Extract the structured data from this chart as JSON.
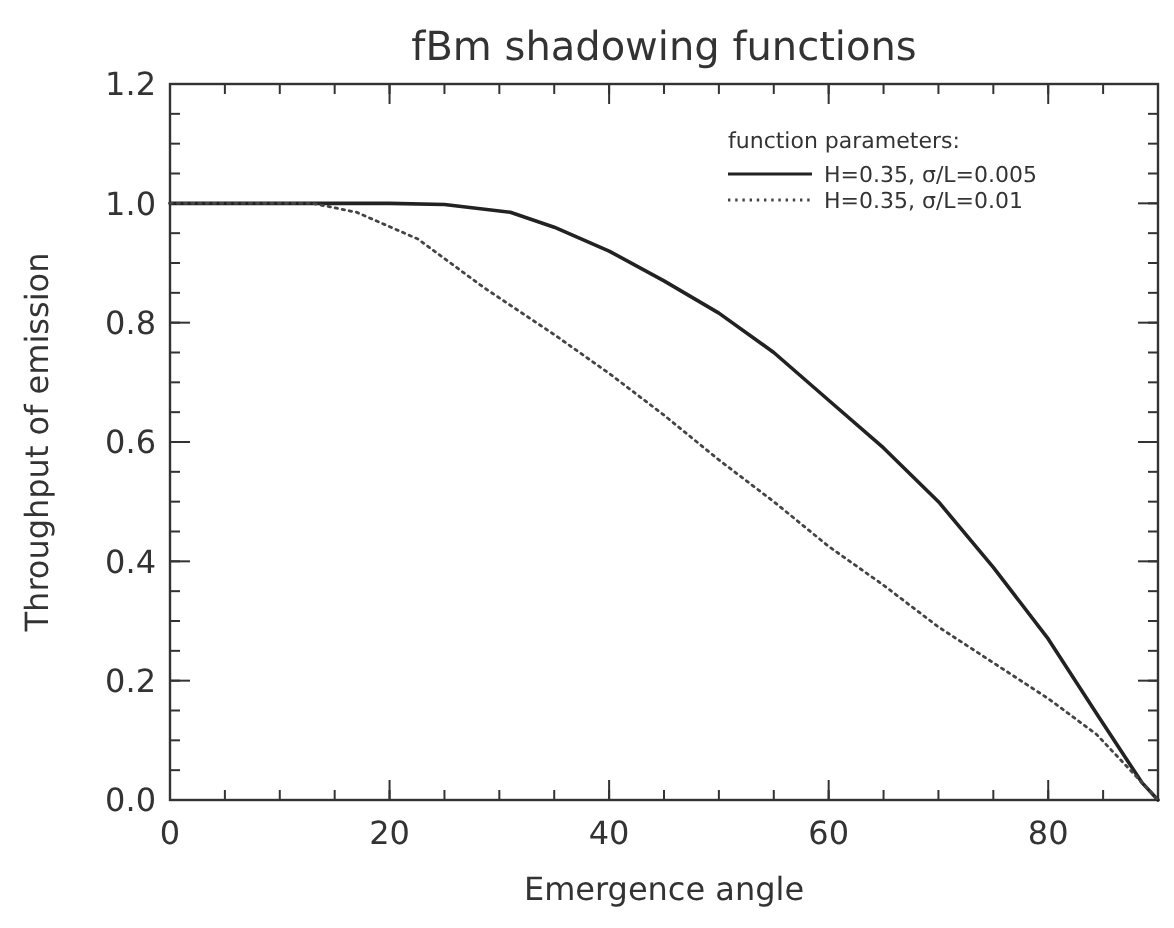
{
  "chart_data": {
    "type": "line",
    "title": "fBm shadowing functions",
    "xlabel": "Emergence angle",
    "ylabel": "Throughput of emission",
    "legend_title": "function parameters:",
    "legend": "top right",
    "xlim": [
      0,
      90
    ],
    "ylim": [
      0,
      1.2
    ],
    "xticks": [
      0,
      20,
      40,
      60,
      80
    ],
    "yticks": [
      {
        "value": 0,
        "label": "0.0"
      },
      {
        "value": 0.2,
        "label": "0.2"
      },
      {
        "value": 0.4,
        "label": "0.4"
      },
      {
        "value": 0.6,
        "label": "0.6"
      },
      {
        "value": 0.8,
        "label": "0.8"
      },
      {
        "value": 1,
        "label": "1.0"
      },
      {
        "value": 1.2,
        "label": "1.2"
      }
    ],
    "series": [
      {
        "name": "H=0.35, σ/L=0.005",
        "color": "#222222",
        "line_style": "solid",
        "x": [
          0,
          10,
          20,
          25,
          31,
          35,
          40,
          45,
          50,
          55,
          60,
          65,
          70,
          75,
          80,
          84.4,
          88.5,
          90
        ],
        "values": [
          1,
          1,
          1,
          0.998,
          0.985,
          0.96,
          0.92,
          0.87,
          0.816,
          0.75,
          0.67,
          0.59,
          0.5,
          0.39,
          0.27,
          0.145,
          0.03,
          0
        ]
      },
      {
        "name": "H=0.35, σ/L=0.01",
        "color": "#444444",
        "line_style": "dotted",
        "x": [
          0,
          10,
          13,
          17,
          22.6,
          28.5,
          35,
          40,
          45,
          50,
          55,
          60,
          65,
          70,
          75,
          80,
          84.4,
          88.5,
          90
        ],
        "values": [
          1,
          1,
          1,
          0.985,
          0.94,
          0.86,
          0.78,
          0.715,
          0.645,
          0.57,
          0.5,
          0.425,
          0.36,
          0.29,
          0.23,
          0.17,
          0.11,
          0.03,
          0
        ]
      }
    ]
  }
}
